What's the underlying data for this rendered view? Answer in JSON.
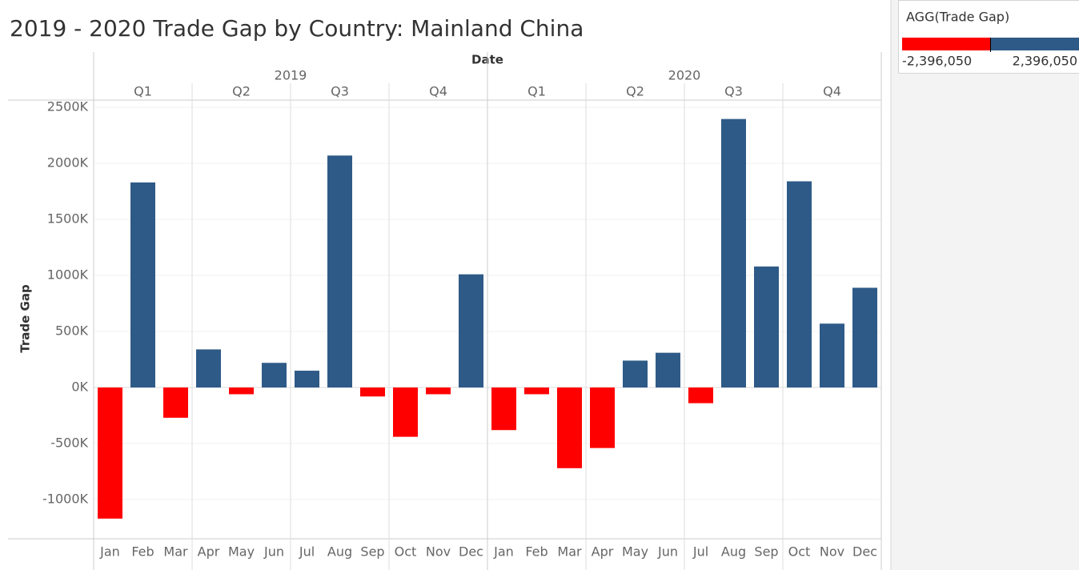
{
  "chart_data": {
    "type": "bar",
    "title": "2019 - 2020 Trade Gap by Country: Mainland China",
    "x_label": "Date",
    "y_label": "Trade Gap",
    "years": [
      "2019",
      "2020"
    ],
    "quarters": [
      "Q1",
      "Q2",
      "Q3",
      "Q4",
      "Q1",
      "Q2",
      "Q3",
      "Q4"
    ],
    "categories": [
      "Jan",
      "Feb",
      "Mar",
      "Apr",
      "May",
      "Jun",
      "Jul",
      "Aug",
      "Sep",
      "Oct",
      "Nov",
      "Dec",
      "Jan",
      "Feb",
      "Mar",
      "Apr",
      "May",
      "Jun",
      "Jul",
      "Aug",
      "Sep",
      "Oct",
      "Nov",
      "Dec"
    ],
    "values": [
      -1170000,
      1830000,
      -270000,
      340000,
      -60000,
      220000,
      150000,
      2070000,
      -80000,
      -440000,
      -60000,
      1010000,
      -380000,
      -60000,
      -720000,
      -540000,
      240000,
      310000,
      -140000,
      2396050,
      1080000,
      1840000,
      570000,
      890000
    ],
    "colors": {
      "negative": "#ff0000",
      "positive": "#2e5a87"
    },
    "ylim": [
      -1350000,
      2565000
    ],
    "yticks": [
      {
        "value": -1000000,
        "label": "-1000K"
      },
      {
        "value": -500000,
        "label": "-500K"
      },
      {
        "value": 0,
        "label": "0K"
      },
      {
        "value": 500000,
        "label": "500K"
      },
      {
        "value": 1000000,
        "label": "1000K"
      },
      {
        "value": 1500000,
        "label": "1500K"
      },
      {
        "value": 2000000,
        "label": "2000K"
      },
      {
        "value": 2500000,
        "label": "2500K"
      }
    ],
    "grid": true,
    "legend": {
      "title": "AGG(Trade Gap)",
      "range": [
        {
          "value": -2396050,
          "label": "-2,396,050"
        },
        {
          "value": 2396050,
          "label": "2,396,050"
        }
      ]
    }
  }
}
